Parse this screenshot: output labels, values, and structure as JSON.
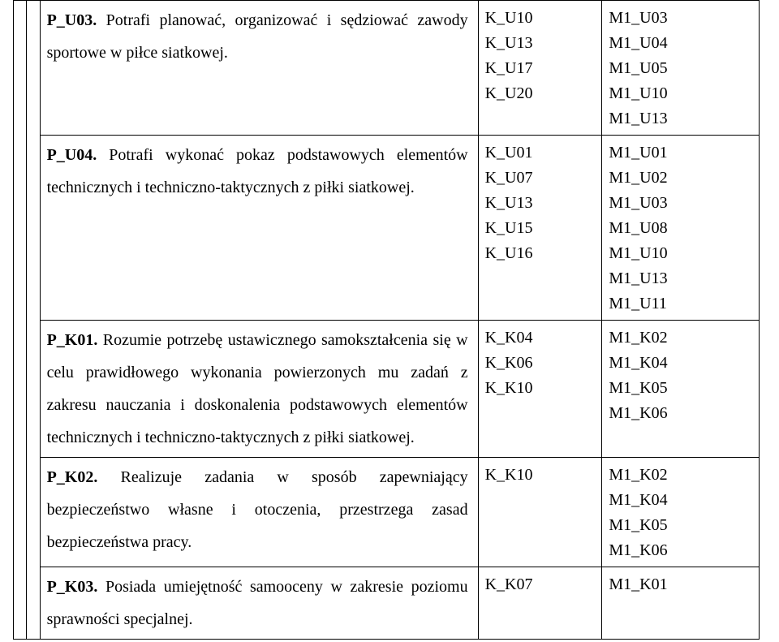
{
  "rows": [
    {
      "desc": {
        "label_bold": "P_U03.",
        "rest": " Potrafi planować, organizować i sędziować zawody sportowe w piłce siatkowej."
      },
      "codes1": "K_U10\nK_U13\nK_U17\nK_U20",
      "codes2": "M1_U03\nM1_U04\nM1_U05\nM1_U10\nM1_U13"
    },
    {
      "desc": {
        "label_bold": "P_U04.",
        "rest": " Potrafi wykonać pokaz podstawowych elementów technicznych i techniczno-taktycznych z piłki siatkowej."
      },
      "codes1": "K_U01\nK_U07\nK_U13\nK_U15\nK_U16",
      "codes2": "M1_U01\nM1_U02\nM1_U03\nM1_U08\nM1_U10\nM1_U13\nM1_U11"
    },
    {
      "desc": {
        "label_bold": "P_K01.",
        "rest": " Rozumie potrzebę ustawicznego samokształcenia się w celu prawidłowego wykonania powierzonych mu zadań z zakresu nauczania i doskonalenia podstawowych elementów technicznych i techniczno-taktycznych z piłki siatkowej."
      },
      "codes1": "K_K04\nK_K06\nK_K10",
      "codes2": "M1_K02\nM1_K04\nM1_K05\nM1_K06"
    },
    {
      "desc": {
        "label_bold": "P_K02.",
        "rest": " Realizuje zadania w sposób zapewniający bezpieczeństwo własne i otoczenia, przestrzega zasad bezpieczeństwa pracy."
      },
      "codes1": "K_K10",
      "codes2": "M1_K02\nM1_K04\nM1_K05\nM1_K06"
    },
    {
      "desc": {
        "label_bold": "P_K03.",
        "rest": " Posiada umiejętność samooceny w zakresie poziomu sprawności specjalnej."
      },
      "codes1": "K_K07",
      "codes2": "M1_K01"
    }
  ]
}
